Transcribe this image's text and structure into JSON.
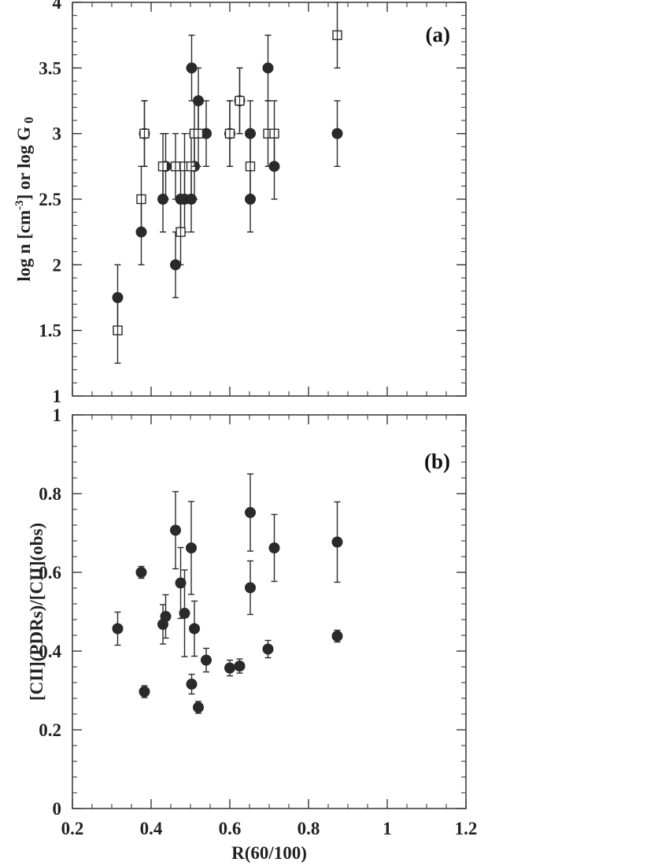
{
  "chart_data": [
    {
      "panel": "(a)",
      "type": "scatter",
      "title": "",
      "xlabel": "",
      "ylabel": "log n [cm-3] or log G0",
      "ylabel_parts": {
        "a": "log n [cm",
        "sup": "-3",
        "b": "] or log G",
        "sub": "0"
      },
      "xlim": [
        0.2,
        1.2
      ],
      "ylim": [
        1,
        4
      ],
      "yticks": [
        "1",
        "1.5",
        "2",
        "2.5",
        "3",
        "3.5",
        "4"
      ],
      "grid": false,
      "legend": "none",
      "series": [
        {
          "marker": "filled-circle",
          "points": [
            {
              "x": 0.315,
              "y": 1.75,
              "err": 0.25
            },
            {
              "x": 0.375,
              "y": 2.25,
              "err": 0.25
            },
            {
              "x": 0.383,
              "y": 3.0,
              "err": 0.25
            },
            {
              "x": 0.43,
              "y": 2.5,
              "err": 0.25
            },
            {
              "x": 0.437,
              "y": 2.75,
              "err": 0.25
            },
            {
              "x": 0.462,
              "y": 2.0,
              "err": 0.25
            },
            {
              "x": 0.475,
              "y": 2.5,
              "err": 0.25
            },
            {
              "x": 0.485,
              "y": 2.5,
              "err": 0.25
            },
            {
              "x": 0.502,
              "y": 2.5,
              "err": 0.25
            },
            {
              "x": 0.503,
              "y": 3.5,
              "err": 0.25
            },
            {
              "x": 0.51,
              "y": 2.75,
              "err": 0.25
            },
            {
              "x": 0.52,
              "y": 3.25,
              "err": 0.25
            },
            {
              "x": 0.54,
              "y": 3.0,
              "err": 0.25
            },
            {
              "x": 0.6,
              "y": 3.0,
              "err": 0.25
            },
            {
              "x": 0.625,
              "y": 3.25,
              "err": 0.25
            },
            {
              "x": 0.652,
              "y": 3.0,
              "err": 0.25
            },
            {
              "x": 0.652,
              "y": 2.5,
              "err": 0.25
            },
            {
              "x": 0.697,
              "y": 3.5,
              "err": 0.25
            },
            {
              "x": 0.713,
              "y": 2.75,
              "err": 0.25
            },
            {
              "x": 0.873,
              "y": 3.0,
              "err": 0.25
            }
          ]
        },
        {
          "marker": "open-square",
          "points": [
            {
              "x": 0.315,
              "y": 1.5,
              "err": 0.25
            },
            {
              "x": 0.375,
              "y": 2.5,
              "err": 0.25
            },
            {
              "x": 0.383,
              "y": 3.0,
              "err": 0.25
            },
            {
              "x": 0.43,
              "y": 2.75,
              "err": 0.25
            },
            {
              "x": 0.462,
              "y": 2.75,
              "err": 0.25
            },
            {
              "x": 0.475,
              "y": 2.25,
              "err": 0.25
            },
            {
              "x": 0.485,
              "y": 2.75,
              "err": 0.25
            },
            {
              "x": 0.502,
              "y": 2.75,
              "err": 0.25
            },
            {
              "x": 0.51,
              "y": 3.0,
              "err": 0.25
            },
            {
              "x": 0.52,
              "y": 3.0,
              "err": 0.25
            },
            {
              "x": 0.6,
              "y": 3.0,
              "err": 0.25
            },
            {
              "x": 0.625,
              "y": 3.25,
              "err": 0.25
            },
            {
              "x": 0.652,
              "y": 2.75,
              "err": 0.25
            },
            {
              "x": 0.697,
              "y": 3.0,
              "err": 0.25
            },
            {
              "x": 0.713,
              "y": 3.0,
              "err": 0.25
            },
            {
              "x": 0.873,
              "y": 3.75,
              "err": 0.25
            }
          ]
        }
      ]
    },
    {
      "panel": "(b)",
      "type": "scatter",
      "title": "",
      "xlabel": "R(60/100)",
      "ylabel": "[CII](PDRs)/[CII](obs)",
      "xlim": [
        0.2,
        1.2
      ],
      "ylim": [
        0,
        1
      ],
      "xticks": [
        "0.2",
        "0.4",
        "0.6",
        "0.8",
        "1",
        "1.2"
      ],
      "yticks": [
        "0",
        "0.2",
        "0.4",
        "0.6",
        "0.8",
        "1"
      ],
      "grid": false,
      "legend": "none",
      "series": [
        {
          "marker": "filled-circle",
          "points": [
            {
              "x": 0.315,
              "y": 0.457,
              "err": 0.042
            },
            {
              "x": 0.375,
              "y": 0.6,
              "err": 0.015
            },
            {
              "x": 0.383,
              "y": 0.297,
              "err": 0.015
            },
            {
              "x": 0.43,
              "y": 0.468,
              "err": 0.05
            },
            {
              "x": 0.437,
              "y": 0.488,
              "err": 0.055
            },
            {
              "x": 0.462,
              "y": 0.707,
              "err": 0.098
            },
            {
              "x": 0.475,
              "y": 0.573,
              "err": 0.09
            },
            {
              "x": 0.485,
              "y": 0.496,
              "err": 0.11
            },
            {
              "x": 0.502,
              "y": 0.662,
              "err": 0.118
            },
            {
              "x": 0.503,
              "y": 0.316,
              "err": 0.025
            },
            {
              "x": 0.51,
              "y": 0.457,
              "err": 0.07
            },
            {
              "x": 0.52,
              "y": 0.257,
              "err": 0.015
            },
            {
              "x": 0.54,
              "y": 0.377,
              "err": 0.03
            },
            {
              "x": 0.6,
              "y": 0.357,
              "err": 0.02
            },
            {
              "x": 0.625,
              "y": 0.362,
              "err": 0.018
            },
            {
              "x": 0.652,
              "y": 0.752,
              "err": 0.098
            },
            {
              "x": 0.652,
              "y": 0.561,
              "err": 0.068
            },
            {
              "x": 0.697,
              "y": 0.405,
              "err": 0.022
            },
            {
              "x": 0.713,
              "y": 0.662,
              "err": 0.085
            },
            {
              "x": 0.873,
              "y": 0.677,
              "err": 0.102
            },
            {
              "x": 0.873,
              "y": 0.438,
              "err": 0.015
            }
          ]
        }
      ]
    }
  ]
}
